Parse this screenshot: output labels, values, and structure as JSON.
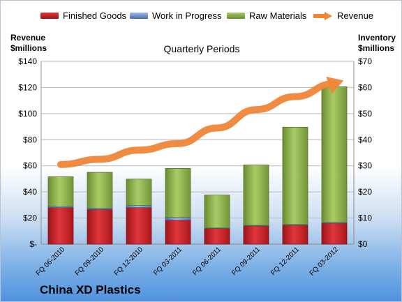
{
  "chart_data": {
    "type": "bar",
    "title": "Quarterly Periods",
    "categories": [
      "FQ 06-2010",
      "FQ 09-2010",
      "FQ 12-2010",
      "FQ 03-2011",
      "FQ 06-2011",
      "FQ 09-2011",
      "FQ 12-2011",
      "FQ 03-2012"
    ],
    "stacked": true,
    "series": [
      {
        "name": "Finished Goods",
        "axis": "right",
        "color": "#c0262b",
        "values": [
          14,
          13.3,
          14,
          9.2,
          6,
          7,
          7.3,
          8
        ]
      },
      {
        "name": "Work in Progress",
        "axis": "right",
        "color": "#6f8fca",
        "values": [
          0.5,
          0.5,
          0.8,
          1,
          0.2,
          0.2,
          0.2,
          0.3
        ]
      },
      {
        "name": "Raw Materials",
        "axis": "right",
        "color": "#8db14a",
        "values": [
          11.3,
          13.7,
          10.1,
          18.8,
          12.6,
          23.1,
          37.3,
          52
        ]
      },
      {
        "name": "Revenue",
        "axis": "left",
        "type": "line",
        "color": "#ee8638",
        "values": [
          61,
          65,
          72,
          77,
          89,
          103,
          113,
          123
        ]
      }
    ],
    "ylabel": "Revenue $millions",
    "y2label": "Inventory $millions",
    "ylim": [
      0,
      140
    ],
    "y2lim": [
      0,
      70
    ],
    "yticks": [
      "$-",
      "$20",
      "$40",
      "$60",
      "$80",
      "$100",
      "$120",
      "$140"
    ],
    "y2ticks": [
      "$0",
      "$10",
      "$20",
      "$30",
      "$40",
      "$50",
      "$60",
      "$70"
    ],
    "grid": true,
    "legend": "top"
  },
  "legend": {
    "finished_goods": "Finished Goods",
    "work_in_progress": "Work in Progress",
    "raw_materials": "Raw Materials",
    "revenue": "Revenue"
  },
  "axis_titles": {
    "left_line1": "Revenue",
    "left_line2": "$millions",
    "right_line1": "Inventory",
    "right_line2": "$millions"
  },
  "title": "Quarterly Periods",
  "company": "China XD Plastics"
}
